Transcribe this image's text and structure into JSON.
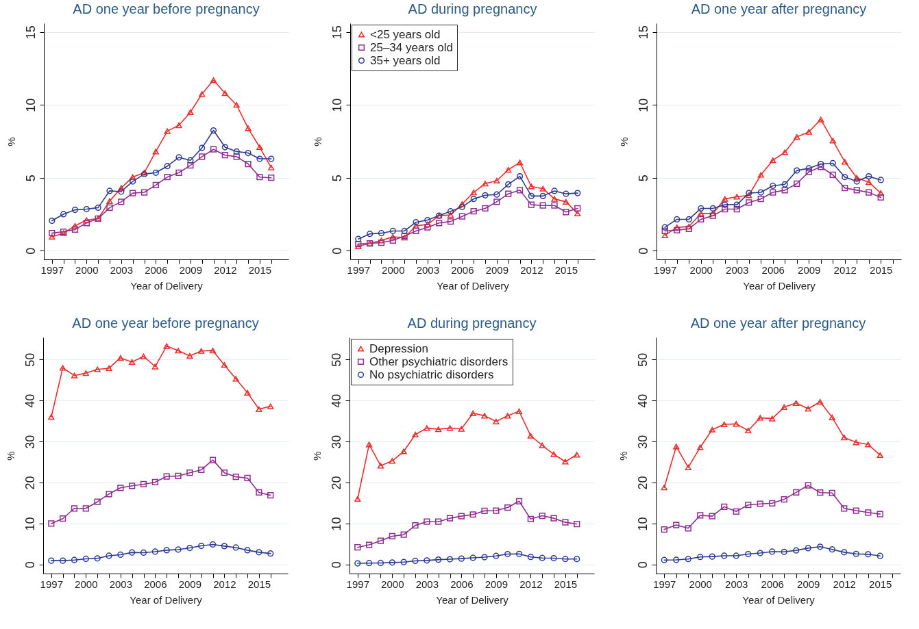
{
  "chart_data": [
    {
      "type": "line",
      "title": "AD one year before pregnancy",
      "xlabel": "Year of Delivery",
      "ylabel": "%",
      "x": [
        1997,
        1998,
        1999,
        2000,
        2001,
        2002,
        2003,
        2004,
        2005,
        2006,
        2007,
        2008,
        2009,
        2010,
        2011,
        2012,
        2013,
        2014,
        2015,
        2016
      ],
      "xlim": [
        1996.3,
        2017.5
      ],
      "xticks": [
        1997,
        {
          "value": 1998,
          "label": null
        },
        {
          "value": 1999,
          "label": null
        },
        2000,
        {
          "value": 2001,
          "label": null
        },
        {
          "value": 2002,
          "label": null
        },
        2003,
        {
          "value": 2004,
          "label": null
        },
        {
          "value": 2005,
          "label": null
        },
        2006,
        {
          "value": 2007,
          "label": null
        },
        {
          "value": 2008,
          "label": null
        },
        2009,
        {
          "value": 2010,
          "label": null
        },
        {
          "value": 2011,
          "label": null
        },
        2012,
        {
          "value": 2013,
          "label": null
        },
        {
          "value": 2014,
          "label": null
        },
        2015,
        {
          "value": 2016,
          "label": null
        }
      ],
      "ylim": [
        -0.6,
        15.6
      ],
      "yticks": [
        0,
        5,
        10,
        15
      ],
      "grid": "y",
      "legend": false,
      "series": [
        {
          "color": "#ee2a2a",
          "marker": "triangle",
          "values": [
            0.95,
            1.2,
            1.7,
            2.1,
            2.2,
            3.4,
            4.3,
            5.05,
            5.35,
            6.8,
            8.2,
            8.6,
            9.5,
            10.75,
            11.7,
            10.8,
            10.0,
            8.4,
            7.1,
            5.7
          ]
        },
        {
          "color": "#8e2c90",
          "marker": "square",
          "values": [
            1.2,
            1.3,
            1.45,
            1.9,
            2.2,
            2.95,
            3.35,
            3.95,
            4.0,
            4.5,
            5.05,
            5.35,
            5.85,
            6.45,
            6.95,
            6.55,
            6.45,
            5.95,
            5.05,
            5.0
          ]
        },
        {
          "color": "#2b3a8f",
          "marker": "circle",
          "values": [
            2.05,
            2.5,
            2.8,
            2.85,
            2.95,
            4.1,
            4.05,
            4.75,
            5.25,
            5.35,
            5.8,
            6.4,
            6.2,
            7.05,
            8.25,
            7.1,
            6.8,
            6.7,
            6.3,
            6.3
          ]
        }
      ]
    },
    {
      "type": "line",
      "title": "AD during pregnancy",
      "xlabel": "Year of Delivery",
      "ylabel": "%",
      "x": [
        1997,
        1998,
        1999,
        2000,
        2001,
        2002,
        2003,
        2004,
        2005,
        2006,
        2007,
        2008,
        2009,
        2010,
        2011,
        2012,
        2013,
        2014,
        2015,
        2016
      ],
      "xlim": [
        1996.3,
        2017.5
      ],
      "xticks": [
        1997,
        {
          "value": 1998,
          "label": null
        },
        {
          "value": 1999,
          "label": null
        },
        2000,
        {
          "value": 2001,
          "label": null
        },
        {
          "value": 2002,
          "label": null
        },
        2003,
        {
          "value": 2004,
          "label": null
        },
        {
          "value": 2005,
          "label": null
        },
        2006,
        {
          "value": 2007,
          "label": null
        },
        {
          "value": 2008,
          "label": null
        },
        2009,
        {
          "value": 2010,
          "label": null
        },
        {
          "value": 2011,
          "label": null
        },
        2012,
        {
          "value": 2013,
          "label": null
        },
        {
          "value": 2014,
          "label": null
        },
        2015,
        {
          "value": 2016,
          "label": null
        }
      ],
      "ylim": [
        -0.6,
        15.6
      ],
      "yticks": [
        0,
        5,
        10,
        15
      ],
      "grid": "y",
      "legend": "top left",
      "series": [
        {
          "name": "<25 years old",
          "color": "#ee2a2a",
          "marker": "triangle",
          "values": [
            0.3,
            0.5,
            0.7,
            0.95,
            0.9,
            1.7,
            1.8,
            2.4,
            2.45,
            3.2,
            4.0,
            4.6,
            4.8,
            5.55,
            6.05,
            4.4,
            4.25,
            3.55,
            3.35,
            2.55
          ]
        },
        {
          "name": "25–34 years old",
          "color": "#8e2c90",
          "marker": "square",
          "values": [
            0.45,
            0.5,
            0.55,
            0.7,
            1.0,
            1.35,
            1.6,
            1.9,
            2.0,
            2.35,
            2.7,
            2.9,
            3.35,
            3.9,
            4.15,
            3.15,
            3.1,
            3.1,
            2.65,
            2.9
          ]
        },
        {
          "name": "35+ years old",
          "color": "#2b3a8f",
          "marker": "circle",
          "values": [
            0.8,
            1.15,
            1.2,
            1.35,
            1.35,
            1.95,
            2.1,
            2.4,
            2.7,
            3.0,
            3.55,
            3.8,
            3.85,
            4.55,
            5.1,
            3.75,
            3.75,
            4.1,
            3.9,
            3.95
          ]
        }
      ]
    },
    {
      "type": "line",
      "title": "AD one year after pregnancy",
      "xlabel": "Year of Delivery",
      "ylabel": "%",
      "x": [
        1997,
        1998,
        1999,
        2000,
        2001,
        2002,
        2003,
        2004,
        2005,
        2006,
        2007,
        2008,
        2009,
        2010,
        2011,
        2012,
        2013,
        2014,
        2015
      ],
      "xlim": [
        1996.3,
        2016.7
      ],
      "xticks": [
        1997,
        {
          "value": 1998,
          "label": null
        },
        {
          "value": 1999,
          "label": null
        },
        2000,
        {
          "value": 2001,
          "label": null
        },
        {
          "value": 2002,
          "label": null
        },
        2003,
        {
          "value": 2004,
          "label": null
        },
        {
          "value": 2005,
          "label": null
        },
        2006,
        {
          "value": 2007,
          "label": null
        },
        {
          "value": 2008,
          "label": null
        },
        2009,
        {
          "value": 2010,
          "label": null
        },
        {
          "value": 2011,
          "label": null
        },
        2012,
        {
          "value": 2013,
          "label": null
        },
        {
          "value": 2014,
          "label": null
        },
        2015,
        {
          "value": 2016,
          "label": null
        }
      ],
      "ylim": [
        -0.6,
        15.6
      ],
      "yticks": [
        0,
        5,
        10,
        15
      ],
      "grid": "y",
      "legend": false,
      "series": [
        {
          "color": "#ee2a2a",
          "marker": "triangle",
          "values": [
            1.05,
            1.6,
            1.65,
            2.55,
            2.55,
            3.55,
            3.7,
            3.8,
            5.2,
            6.2,
            6.75,
            7.8,
            8.15,
            9.0,
            7.55,
            6.1,
            5.0,
            4.7,
            3.95
          ]
        },
        {
          "color": "#8e2c90",
          "marker": "square",
          "values": [
            1.35,
            1.4,
            1.5,
            2.15,
            2.4,
            2.85,
            2.85,
            3.3,
            3.55,
            4.0,
            4.15,
            4.6,
            5.4,
            5.75,
            5.2,
            4.3,
            4.15,
            4.0,
            3.65
          ]
        },
        {
          "color": "#2b3a8f",
          "marker": "circle",
          "values": [
            1.6,
            2.15,
            2.15,
            2.9,
            2.9,
            3.15,
            3.15,
            3.95,
            4.0,
            4.45,
            4.55,
            5.5,
            5.65,
            5.95,
            6.0,
            5.05,
            4.75,
            5.1,
            4.85
          ]
        }
      ]
    },
    {
      "type": "line",
      "title": "AD one year before pregnancy",
      "xlabel": "Year of Delivery",
      "ylabel": "%",
      "x": [
        1997,
        1998,
        1999,
        2000,
        2001,
        2002,
        2003,
        2004,
        2005,
        2006,
        2007,
        2008,
        2009,
        2010,
        2011,
        2012,
        2013,
        2014,
        2015,
        2016
      ],
      "xlim": [
        1996.3,
        2017.5
      ],
      "xticks": [
        1997,
        {
          "value": 1998,
          "label": null
        },
        {
          "value": 1999,
          "label": null
        },
        2000,
        {
          "value": 2001,
          "label": null
        },
        {
          "value": 2002,
          "label": null
        },
        2003,
        {
          "value": 2004,
          "label": null
        },
        {
          "value": 2005,
          "label": null
        },
        2006,
        {
          "value": 2007,
          "label": null
        },
        {
          "value": 2008,
          "label": null
        },
        2009,
        {
          "value": 2010,
          "label": null
        },
        {
          "value": 2011,
          "label": null
        },
        2012,
        {
          "value": 2013,
          "label": null
        },
        {
          "value": 2014,
          "label": null
        },
        2015,
        {
          "value": 2016,
          "label": null
        }
      ],
      "ylim": [
        -2.2,
        55.4
      ],
      "yticks": [
        0,
        10,
        20,
        30,
        40,
        50
      ],
      "grid": "y",
      "legend": false,
      "series": [
        {
          "color": "#ee2a2a",
          "marker": "triangle",
          "values": [
            36.0,
            48.0,
            46.1,
            46.7,
            47.6,
            47.9,
            50.4,
            49.4,
            50.8,
            48.3,
            53.3,
            52.2,
            50.9,
            52.1,
            52.2,
            48.7,
            45.3,
            41.9,
            37.9,
            38.6
          ]
        },
        {
          "color": "#8e2c90",
          "marker": "square",
          "values": [
            10.0,
            11.2,
            13.7,
            13.7,
            15.3,
            17.2,
            18.7,
            19.2,
            19.6,
            20.1,
            21.5,
            21.6,
            22.4,
            23.1,
            25.5,
            22.4,
            21.4,
            21.1,
            17.6,
            16.9
          ]
        },
        {
          "color": "#2b3a8f",
          "marker": "circle",
          "values": [
            0.95,
            0.95,
            1.1,
            1.4,
            1.5,
            2.15,
            2.4,
            2.95,
            2.9,
            3.15,
            3.5,
            3.65,
            4.05,
            4.55,
            4.9,
            4.5,
            4.15,
            3.5,
            3.0,
            2.7
          ]
        }
      ]
    },
    {
      "type": "line",
      "title": "AD during pregnancy",
      "xlabel": "Year of Delivery",
      "ylabel": "%",
      "x": [
        1997,
        1998,
        1999,
        2000,
        2001,
        2002,
        2003,
        2004,
        2005,
        2006,
        2007,
        2008,
        2009,
        2010,
        2011,
        2012,
        2013,
        2014,
        2015,
        2016
      ],
      "xlim": [
        1996.3,
        2017.5
      ],
      "xticks": [
        1997,
        {
          "value": 1998,
          "label": null
        },
        {
          "value": 1999,
          "label": null
        },
        2000,
        {
          "value": 2001,
          "label": null
        },
        {
          "value": 2002,
          "label": null
        },
        2003,
        {
          "value": 2004,
          "label": null
        },
        {
          "value": 2005,
          "label": null
        },
        2006,
        {
          "value": 2007,
          "label": null
        },
        {
          "value": 2008,
          "label": null
        },
        2009,
        {
          "value": 2010,
          "label": null
        },
        {
          "value": 2011,
          "label": null
        },
        2012,
        {
          "value": 2013,
          "label": null
        },
        {
          "value": 2014,
          "label": null
        },
        2015,
        {
          "value": 2016,
          "label": null
        }
      ],
      "ylim": [
        -2.2,
        55.4
      ],
      "yticks": [
        0,
        10,
        20,
        30,
        40,
        50
      ],
      "grid": "y",
      "legend": "top left",
      "series": [
        {
          "name": "Depression",
          "color": "#ee2a2a",
          "marker": "triangle",
          "values": [
            16.0,
            29.3,
            24.1,
            25.3,
            27.6,
            31.7,
            33.3,
            33.0,
            33.3,
            33.1,
            36.9,
            36.3,
            34.9,
            36.3,
            37.4,
            31.4,
            29.1,
            26.9,
            25.1,
            26.8
          ]
        },
        {
          "name": "Other psychiatric disorders",
          "color": "#8e2c90",
          "marker": "square",
          "values": [
            4.2,
            4.8,
            5.8,
            6.9,
            7.3,
            9.55,
            10.45,
            10.45,
            11.3,
            11.8,
            12.2,
            13.1,
            13.15,
            13.9,
            15.45,
            11.1,
            11.9,
            11.3,
            10.3,
            9.9
          ]
        },
        {
          "name": "No psychiatric disorders",
          "color": "#2b3a8f",
          "marker": "circle",
          "values": [
            0.3,
            0.35,
            0.4,
            0.5,
            0.6,
            0.9,
            1.0,
            1.2,
            1.3,
            1.45,
            1.65,
            1.8,
            2.1,
            2.55,
            2.6,
            1.85,
            1.6,
            1.55,
            1.35,
            1.35
          ]
        }
      ]
    },
    {
      "type": "line",
      "title": "AD one year after pregnancy",
      "xlabel": "Year of Delivery",
      "ylabel": "%",
      "x": [
        1997,
        1998,
        1999,
        2000,
        2001,
        2002,
        2003,
        2004,
        2005,
        2006,
        2007,
        2008,
        2009,
        2010,
        2011,
        2012,
        2013,
        2014,
        2015
      ],
      "xlim": [
        1996.3,
        2016.7
      ],
      "xticks": [
        1997,
        {
          "value": 1998,
          "label": null
        },
        {
          "value": 1999,
          "label": null
        },
        2000,
        {
          "value": 2001,
          "label": null
        },
        {
          "value": 2002,
          "label": null
        },
        2003,
        {
          "value": 2004,
          "label": null
        },
        {
          "value": 2005,
          "label": null
        },
        2006,
        {
          "value": 2007,
          "label": null
        },
        {
          "value": 2008,
          "label": null
        },
        2009,
        {
          "value": 2010,
          "label": null
        },
        {
          "value": 2011,
          "label": null
        },
        2012,
        {
          "value": 2013,
          "label": null
        },
        {
          "value": 2014,
          "label": null
        },
        2015,
        {
          "value": 2016,
          "label": null
        }
      ],
      "ylim": [
        -2.2,
        55.4
      ],
      "yticks": [
        0,
        10,
        20,
        30,
        40,
        50
      ],
      "grid": "y",
      "legend": false,
      "series": [
        {
          "color": "#ee2a2a",
          "marker": "triangle",
          "values": [
            18.8,
            28.8,
            23.7,
            28.6,
            32.9,
            34.2,
            34.3,
            32.7,
            35.8,
            35.6,
            38.4,
            39.4,
            38.0,
            39.7,
            35.9,
            31.0,
            29.8,
            29.3,
            26.7
          ]
        },
        {
          "color": "#8e2c90",
          "marker": "square",
          "values": [
            8.55,
            9.65,
            8.85,
            12.0,
            11.8,
            14.1,
            12.95,
            14.55,
            14.8,
            14.95,
            15.9,
            17.6,
            19.3,
            17.55,
            17.45,
            13.7,
            13.15,
            12.7,
            12.3
          ]
        },
        {
          "color": "#2b3a8f",
          "marker": "circle",
          "values": [
            1.1,
            1.15,
            1.35,
            1.85,
            1.95,
            2.15,
            2.15,
            2.55,
            2.8,
            3.15,
            3.1,
            3.45,
            4.0,
            4.35,
            3.7,
            3.0,
            2.6,
            2.5,
            2.1
          ]
        }
      ]
    }
  ]
}
